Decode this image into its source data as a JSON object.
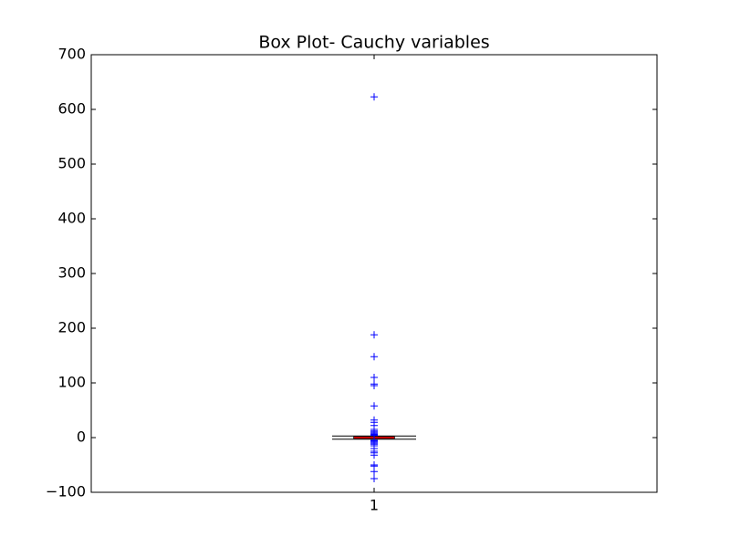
{
  "chart_data": {
    "type": "box",
    "title": "Box Plot- Cauchy variables",
    "categories": [
      "1"
    ],
    "ylim": [
      -100,
      700
    ],
    "yticks": [
      {
        "value": -100,
        "label": "−100"
      },
      0,
      100,
      200,
      300,
      400,
      500,
      600,
      700
    ],
    "box_color": "#000000",
    "median_color": "#ff0000",
    "whisker_color": "#0000ff",
    "flier_color": "#0000ff",
    "boxes": [
      {
        "whislo": -3,
        "q1": -1,
        "med": 0,
        "q3": 1,
        "whishi": 3,
        "fliers": [
          623,
          188,
          148,
          110,
          98,
          95,
          58,
          32,
          28,
          22,
          15,
          12,
          10,
          8,
          6,
          5,
          4,
          -5,
          -6,
          -8,
          -10,
          -12,
          -15,
          -20,
          -25,
          -28,
          -32,
          -50,
          -52,
          -62,
          -75
        ]
      }
    ]
  }
}
